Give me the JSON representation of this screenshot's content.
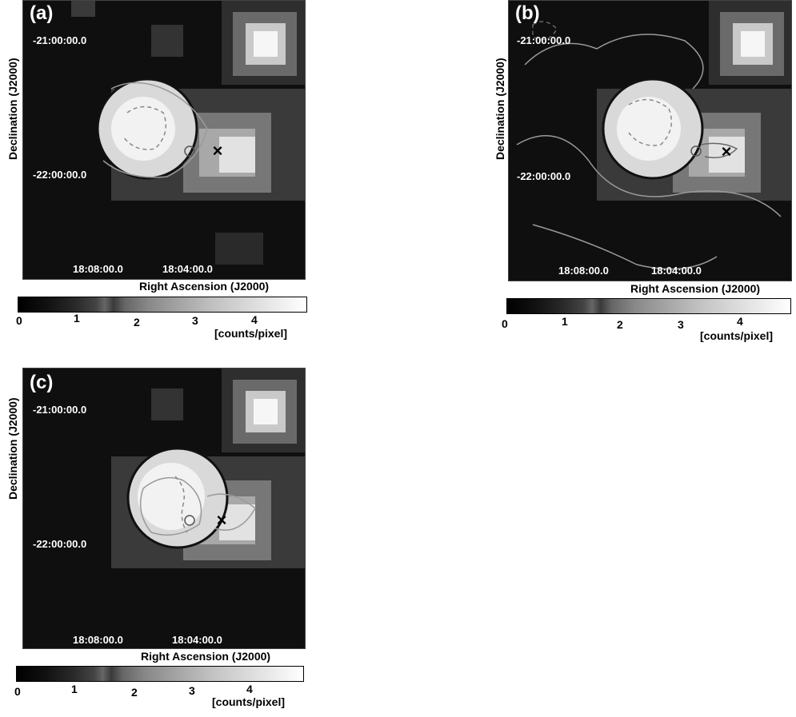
{
  "panels": [
    {
      "label": "(a)",
      "dec_ticks": [
        "-21:00:00.0",
        "-22:00:00.0"
      ],
      "ra_ticks": [
        "18:08:00.0",
        "18:04:00.0"
      ]
    },
    {
      "label": "(b)",
      "dec_ticks": [
        "-21:00:00.0",
        "-22:00:00.0"
      ],
      "ra_ticks": [
        "18:08:00.0",
        "18:04:00.0"
      ]
    },
    {
      "label": "(c)",
      "dec_ticks": [
        "-21:00:00.0",
        "-22:00:00.0"
      ],
      "ra_ticks": [
        "18:08:00.0",
        "18:04:00.0"
      ]
    }
  ],
  "axes": {
    "y_label": "Declination (J2000)",
    "x_label": "Right Ascension (J2000)"
  },
  "colorbar": {
    "ticks": [
      "0",
      "1",
      "2",
      "3",
      "4"
    ],
    "unit": "[counts/pixel]"
  },
  "markers": {
    "cross": "×"
  },
  "colors": {
    "background": "#0f0f0f",
    "contour": "#9a9a9a",
    "circle": "#111111"
  }
}
